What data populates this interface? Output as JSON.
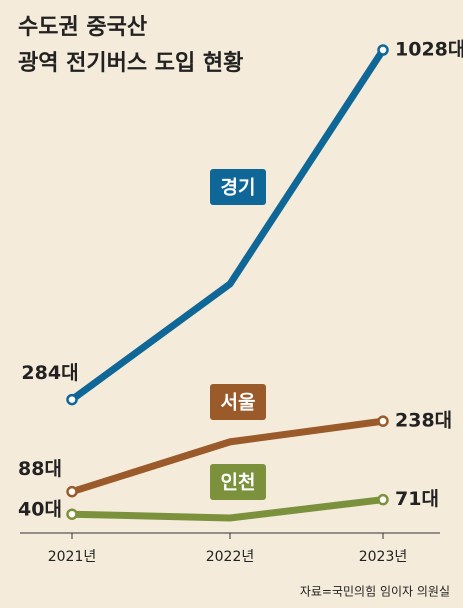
{
  "chart_data": {
    "type": "line",
    "title": [
      "수도권 중국산",
      "광역 전기버스 도입 현황"
    ],
    "categories": [
      "2021년",
      "2022년",
      "2023년"
    ],
    "series": [
      {
        "name": "경기",
        "color": "#0f6797",
        "values": [
          284,
          530,
          1028
        ],
        "value_labels": [
          "284대",
          null,
          "1028대"
        ]
      },
      {
        "name": "서울",
        "color": "#9a5a2a",
        "values": [
          88,
          194,
          238
        ],
        "value_labels": [
          "88대",
          null,
          "238대"
        ]
      },
      {
        "name": "인천",
        "color": "#7b913c",
        "values": [
          40,
          32,
          71
        ],
        "value_labels": [
          "40대",
          null,
          "71대"
        ]
      }
    ],
    "source": "자료=국민의힘 임이자 의원실"
  }
}
